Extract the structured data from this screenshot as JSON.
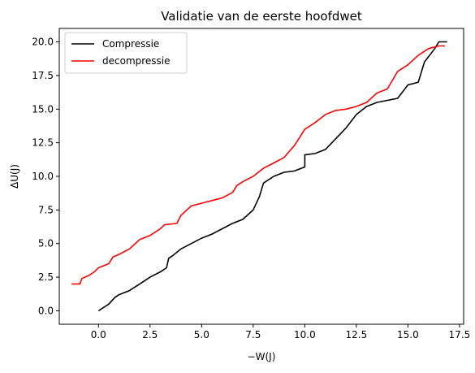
{
  "chart_data": {
    "type": "line",
    "title": "Validatie van de eerste hoofdwet",
    "xlabel": "−W(J)",
    "ylabel": "ΔU(J)",
    "xlim": [
      -1.9,
      17.7
    ],
    "ylim": [
      -1.0,
      21.0
    ],
    "x_ticks": [
      0.0,
      2.5,
      5.0,
      7.5,
      10.0,
      12.5,
      15.0,
      17.5
    ],
    "x_tick_labels": [
      "0.0",
      "2.5",
      "5.0",
      "7.5",
      "10.0",
      "12.5",
      "15.0",
      "17.5"
    ],
    "y_ticks": [
      0.0,
      2.5,
      5.0,
      7.5,
      10.0,
      12.5,
      15.0,
      17.5,
      20.0
    ],
    "y_tick_labels": [
      "0.0",
      "2.5",
      "5.0",
      "7.5",
      "10.0",
      "12.5",
      "15.0",
      "17.5",
      "20.0"
    ],
    "grid": false,
    "legend_position": "top-left",
    "series": [
      {
        "name": "Compressie",
        "color": "#000000",
        "points": [
          [
            0.0,
            0.0
          ],
          [
            0.3,
            0.3
          ],
          [
            0.5,
            0.5
          ],
          [
            0.8,
            1.0
          ],
          [
            1.0,
            1.2
          ],
          [
            1.5,
            1.5
          ],
          [
            2.0,
            2.0
          ],
          [
            2.5,
            2.5
          ],
          [
            3.0,
            2.9
          ],
          [
            3.3,
            3.2
          ],
          [
            3.4,
            3.9
          ],
          [
            3.6,
            4.1
          ],
          [
            4.0,
            4.6
          ],
          [
            4.5,
            5.0
          ],
          [
            5.0,
            5.4
          ],
          [
            5.5,
            5.7
          ],
          [
            6.0,
            6.1
          ],
          [
            6.5,
            6.5
          ],
          [
            7.0,
            6.8
          ],
          [
            7.5,
            7.5
          ],
          [
            7.8,
            8.5
          ],
          [
            8.0,
            9.5
          ],
          [
            8.5,
            10.0
          ],
          [
            9.0,
            10.3
          ],
          [
            9.5,
            10.4
          ],
          [
            10.0,
            10.7
          ],
          [
            10.0,
            11.6
          ],
          [
            10.5,
            11.7
          ],
          [
            11.0,
            12.0
          ],
          [
            11.5,
            12.8
          ],
          [
            12.0,
            13.6
          ],
          [
            12.5,
            14.6
          ],
          [
            13.0,
            15.2
          ],
          [
            13.5,
            15.5
          ],
          [
            14.5,
            15.8
          ],
          [
            15.0,
            16.8
          ],
          [
            15.5,
            17.0
          ],
          [
            15.8,
            18.5
          ],
          [
            16.3,
            19.5
          ],
          [
            16.5,
            20.0
          ],
          [
            16.9,
            20.0
          ]
        ]
      },
      {
        "name": "decompressie",
        "color": "#ff0000",
        "points": [
          [
            -1.3,
            2.0
          ],
          [
            -0.9,
            2.0
          ],
          [
            -0.8,
            2.4
          ],
          [
            -0.5,
            2.6
          ],
          [
            -0.2,
            2.9
          ],
          [
            0.0,
            3.2
          ],
          [
            0.5,
            3.5
          ],
          [
            0.7,
            4.0
          ],
          [
            1.0,
            4.2
          ],
          [
            1.5,
            4.6
          ],
          [
            2.0,
            5.3
          ],
          [
            2.5,
            5.6
          ],
          [
            3.0,
            6.1
          ],
          [
            3.2,
            6.4
          ],
          [
            3.8,
            6.5
          ],
          [
            4.0,
            7.1
          ],
          [
            4.5,
            7.8
          ],
          [
            5.0,
            8.0
          ],
          [
            5.5,
            8.2
          ],
          [
            6.0,
            8.4
          ],
          [
            6.5,
            8.8
          ],
          [
            6.7,
            9.3
          ],
          [
            7.0,
            9.6
          ],
          [
            7.5,
            10.0
          ],
          [
            8.0,
            10.6
          ],
          [
            8.5,
            11.0
          ],
          [
            9.0,
            11.4
          ],
          [
            9.5,
            12.3
          ],
          [
            10.0,
            13.5
          ],
          [
            10.5,
            14.0
          ],
          [
            11.0,
            14.6
          ],
          [
            11.5,
            14.9
          ],
          [
            12.0,
            15.0
          ],
          [
            12.5,
            15.2
          ],
          [
            13.0,
            15.5
          ],
          [
            13.5,
            16.2
          ],
          [
            14.0,
            16.5
          ],
          [
            14.5,
            17.8
          ],
          [
            15.0,
            18.3
          ],
          [
            15.5,
            19.0
          ],
          [
            16.0,
            19.5
          ],
          [
            16.5,
            19.7
          ],
          [
            16.8,
            19.7
          ]
        ]
      }
    ]
  }
}
